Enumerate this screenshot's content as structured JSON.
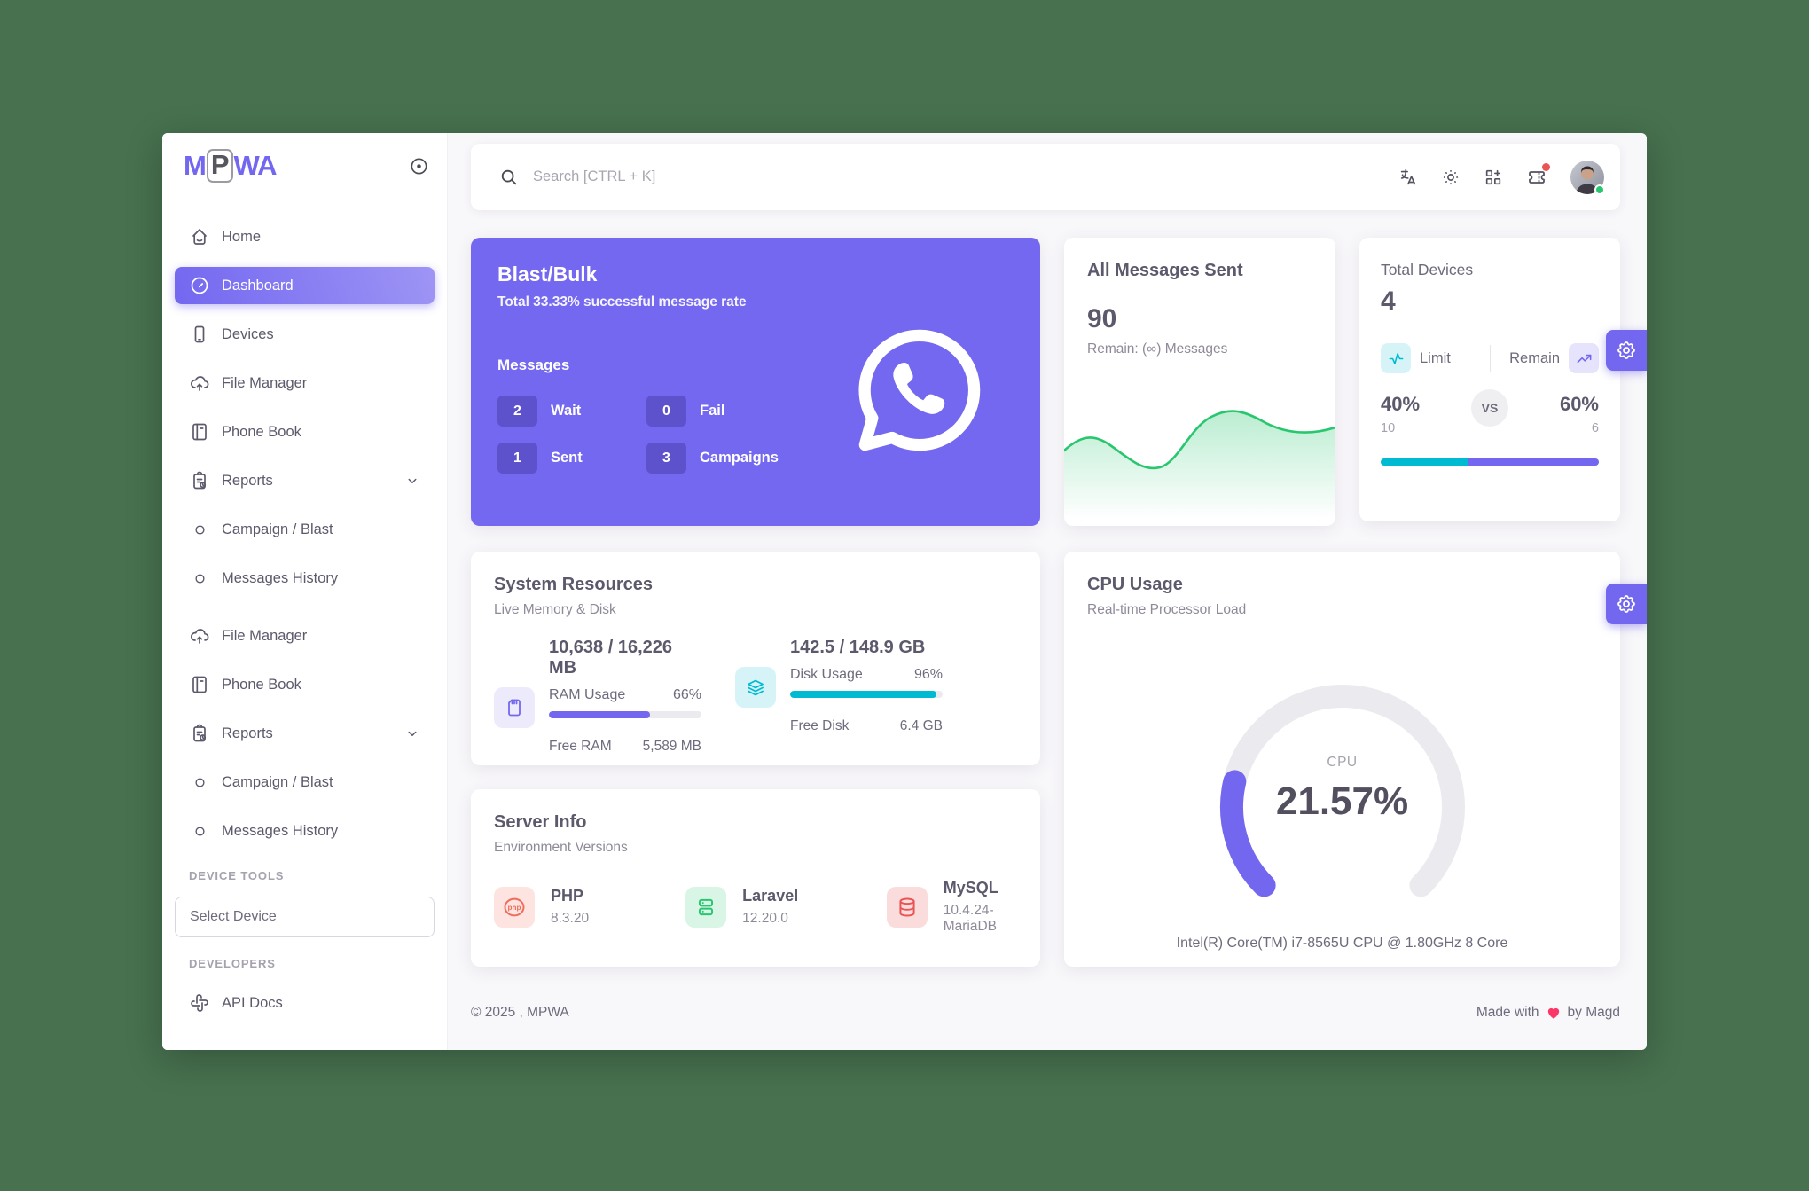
{
  "app": {
    "logo_m": "M",
    "logo_p": "P",
    "logo_wa": "WA"
  },
  "header": {
    "search_placeholder": "Search [CTRL + K]"
  },
  "sidebar": {
    "items": [
      {
        "label": "Home"
      },
      {
        "label": "Dashboard"
      },
      {
        "label": "Devices"
      },
      {
        "label": "File Manager"
      },
      {
        "label": "Phone Book"
      },
      {
        "label": "Reports"
      },
      {
        "label": "Campaign / Blast"
      },
      {
        "label": "Messages History"
      },
      {
        "label": "File Manager"
      },
      {
        "label": "Phone Book"
      },
      {
        "label": "Reports"
      },
      {
        "label": "Campaign / Blast"
      },
      {
        "label": "Messages History"
      }
    ],
    "sections": {
      "device_tools": "DEVICE TOOLS",
      "developers": "DEVELOPERS"
    },
    "select_device_label": "Select Device",
    "api_docs_label": "API Docs"
  },
  "blast": {
    "title": "Blast/Bulk",
    "subtitle": "Total 33.33% successful message rate",
    "messages_label": "Messages",
    "stats": [
      {
        "value": "2",
        "label": "Wait"
      },
      {
        "value": "0",
        "label": "Fail"
      },
      {
        "value": "1",
        "label": "Sent"
      },
      {
        "value": "3",
        "label": "Campaigns"
      }
    ]
  },
  "messages_sent": {
    "title": "All Messages Sent",
    "count": "90",
    "remain": "Remain: (∞) Messages"
  },
  "devices": {
    "title": "Total Devices",
    "count": "4",
    "limit_label": "Limit",
    "remain_label": "Remain",
    "vs_label": "VS",
    "limit_pct": "40%",
    "remain_pct": "60%",
    "limit_value": "10",
    "remain_value": "6",
    "limit_pct_num": 40,
    "remain_pct_num": 60
  },
  "resources": {
    "title": "System Resources",
    "subtitle": "Live Memory & Disk",
    "ram": {
      "usage_text": "10,638 / 16,226 MB",
      "label": "RAM Usage",
      "pct": "66%",
      "pct_num": 66,
      "free_label": "Free RAM",
      "free_value": "5,589 MB"
    },
    "disk": {
      "usage_text": "142.5 / 148.9 GB",
      "label": "Disk Usage",
      "pct": "96%",
      "pct_num": 96,
      "free_label": "Free Disk",
      "free_value": "6.4 GB"
    }
  },
  "cpu": {
    "title": "CPU Usage",
    "subtitle": "Real-time Processor Load",
    "gauge_label": "CPU",
    "value": "21.57%",
    "value_num": 21.57,
    "description": "Intel(R) Core(TM) i7-8565U CPU @ 1.80GHz 8 Core"
  },
  "server": {
    "title": "Server Info",
    "subtitle": "Environment Versions",
    "items": [
      {
        "name": "PHP",
        "version": "8.3.20"
      },
      {
        "name": "Laravel",
        "version": "12.20.0"
      },
      {
        "name": "MySQL",
        "version": "10.4.24-MariaDB"
      }
    ]
  },
  "footer": {
    "copyright": "© 2025 , MPWA",
    "credit_prefix": "Made with",
    "credit_suffix": "by Magd"
  },
  "colors": {
    "primary": "#7367f0",
    "teal": "#00bad1",
    "success": "#28c76f",
    "danger": "#ea5455",
    "background_green": "#47714f"
  },
  "icons": {
    "search-icon": "magnifier",
    "language-icon": "translate",
    "theme-icon": "sun",
    "shortcuts-icon": "grid-plus",
    "notifications-icon": "ticket with red dot",
    "collapse-icon": "record-circle",
    "home-icon": "house",
    "dashboard-icon": "gauge",
    "devices-icon": "smartphone",
    "file-manager-icon": "cloud-upload",
    "phone-book-icon": "book",
    "reports-icon": "clipboard-report",
    "submenu-icon": "circle",
    "api-docs-icon": "api-hooks",
    "whatsapp-icon": "whatsapp bubble",
    "limit-icon": "activity pulse",
    "remain-icon": "trending-up",
    "ram-icon": "sim-card",
    "disk-icon": "layers",
    "php-icon": "php ellipse",
    "laravel-icon": "server rack",
    "mysql-icon": "database cylinder",
    "settings-icon": "gear",
    "heart-icon": "heart"
  }
}
